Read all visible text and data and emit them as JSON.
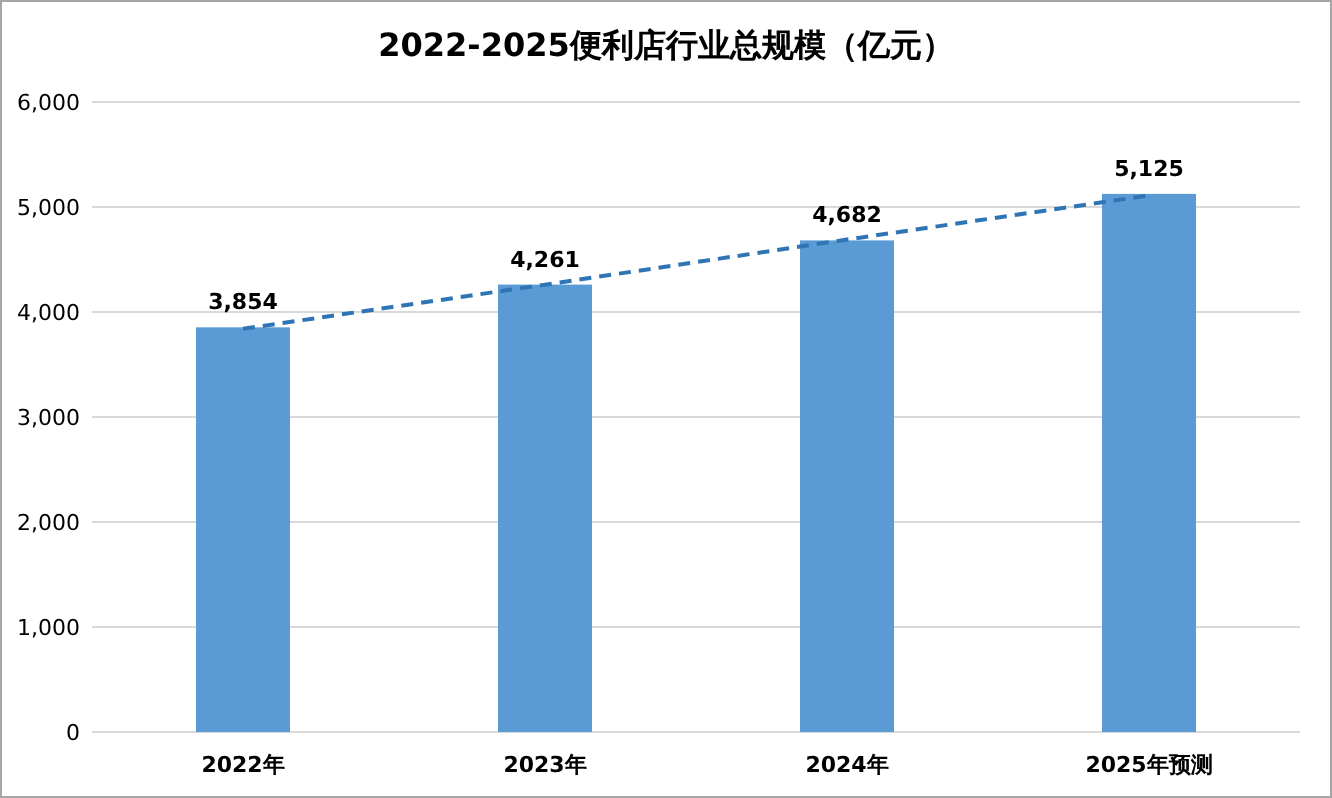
{
  "chart_data": {
    "type": "bar",
    "title": "2022-2025便利店行业总规模（亿元）",
    "categories": [
      "2022年",
      "2023年",
      "2024年",
      "2025年预测"
    ],
    "series": [
      {
        "color": "#5b9bd5",
        "values": [
          3854,
          4261,
          4682,
          5125
        ],
        "value_labels": [
          "3,854",
          "4,261",
          "4,682",
          "5,125"
        ]
      },
      {
        "type": "line",
        "color": "#2f75b5",
        "line_style": "dashed",
        "values": [
          3840,
          4260,
          4690,
          5110
        ]
      }
    ],
    "ylim": [
      0,
      6000
    ],
    "yticks": [
      {
        "value": 0,
        "label": "0"
      },
      {
        "value": 1000,
        "label": "1,000"
      },
      {
        "value": 2000,
        "label": "2,000"
      },
      {
        "value": 3000,
        "label": "3,000"
      },
      {
        "value": 4000,
        "label": "4,000"
      },
      {
        "value": 5000,
        "label": "5,000"
      },
      {
        "value": 6000,
        "label": "6,000"
      }
    ],
    "grid": "y"
  }
}
